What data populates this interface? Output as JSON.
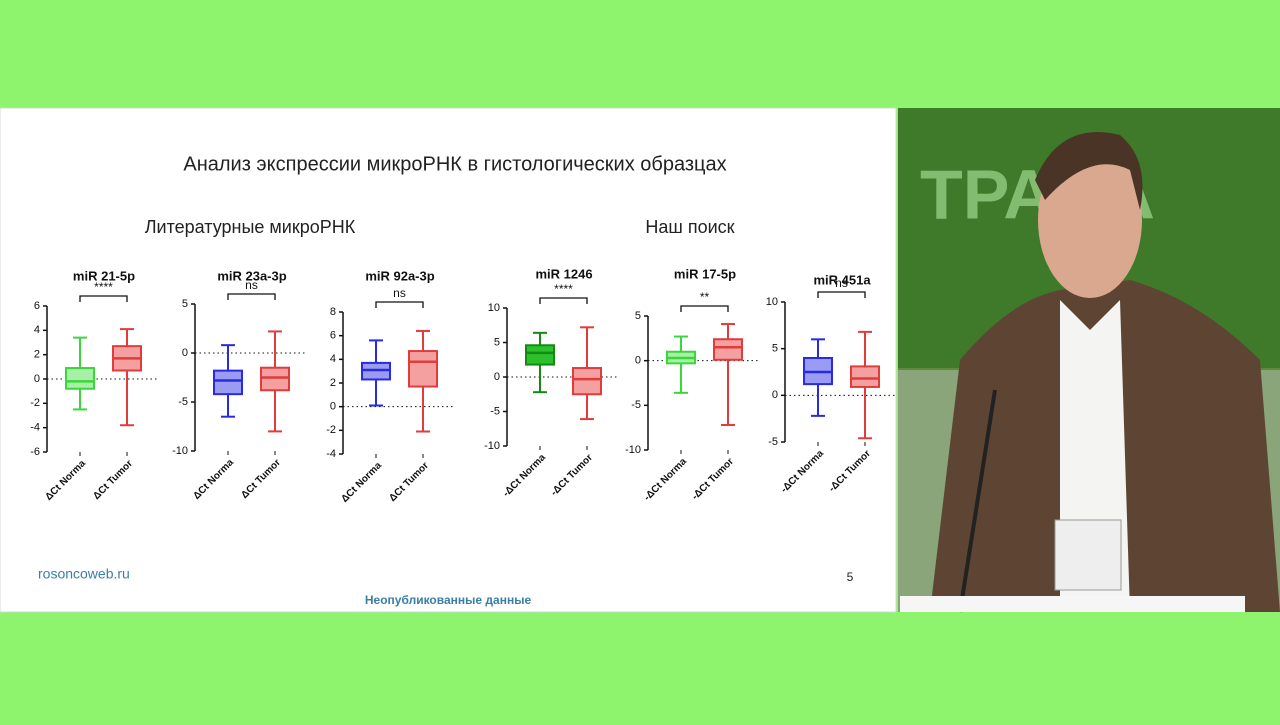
{
  "slide": {
    "title": "Анализ экспрессии микроРНК в гистологических образцах",
    "left_heading": "Литературные микроРНК",
    "right_heading": "Наш поиск",
    "website": "rosoncoweb.ru",
    "page_number": "5",
    "footer": "Неопубликованные данные"
  },
  "chart_data": [
    {
      "type": "box",
      "title": "miR 21-5p",
      "categories": [
        "ΔCt Norma",
        "ΔCt Tumor"
      ],
      "colors": [
        "#3ad63a",
        "#e03c3c"
      ],
      "fills": [
        "#a8f0a8",
        "#f4a0a0"
      ],
      "min": [
        -2.5,
        -3.8
      ],
      "q1": [
        -0.8,
        0.7
      ],
      "median": [
        -0.2,
        1.7
      ],
      "q3": [
        0.9,
        2.7
      ],
      "max": [
        3.4,
        4.1
      ],
      "ylim": [
        -6,
        6
      ],
      "yticks": [
        -6,
        -4,
        -2,
        0,
        2,
        4,
        6
      ],
      "annotation": "****"
    },
    {
      "type": "box",
      "title": "miR 23a-3p",
      "categories": [
        "ΔCt Norma",
        "ΔCt Tumor"
      ],
      "colors": [
        "#2a2ae0",
        "#e03c3c"
      ],
      "fills": [
        "#9a9cf4",
        "#f4a0a0"
      ],
      "min": [
        -6.5,
        -8
      ],
      "q1": [
        -4.2,
        -3.8
      ],
      "median": [
        -2.8,
        -2.5
      ],
      "q3": [
        -1.8,
        -1.5
      ],
      "max": [
        0.8,
        2.2
      ],
      "ylim": [
        -10,
        5
      ],
      "yticks": [
        -10,
        -5,
        0,
        5
      ],
      "annotation": "ns"
    },
    {
      "type": "box",
      "title": "miR 92a-3p",
      "categories": [
        "ΔCt Norma",
        "ΔCt Tumor"
      ],
      "colors": [
        "#2a2ae0",
        "#e03c3c"
      ],
      "fills": [
        "#9a9cf4",
        "#f4a0a0"
      ],
      "min": [
        0.1,
        -2.1
      ],
      "q1": [
        2.3,
        1.7
      ],
      "median": [
        3.1,
        3.8
      ],
      "q3": [
        3.7,
        4.7
      ],
      "max": [
        5.6,
        6.4
      ],
      "ylim": [
        -4,
        8
      ],
      "yticks": [
        -4,
        -2,
        0,
        2,
        4,
        6,
        8
      ],
      "annotation": "ns"
    },
    {
      "type": "box",
      "title": "miR 1246",
      "categories": [
        "-ΔCt Norma",
        "-ΔCt Tumor"
      ],
      "colors": [
        "#138a13",
        "#e03c3c"
      ],
      "fills": [
        "#2cc02c",
        "#f4a0a0"
      ],
      "min": [
        -2.2,
        -6.1
      ],
      "q1": [
        1.8,
        -2.5
      ],
      "median": [
        3.5,
        -0.3
      ],
      "q3": [
        4.6,
        1.3
      ],
      "max": [
        6.4,
        7.2
      ],
      "ylim": [
        -10,
        10
      ],
      "yticks": [
        -10,
        -5,
        0,
        5,
        10
      ],
      "annotation": "****"
    },
    {
      "type": "box",
      "title": "miR 17-5p",
      "categories": [
        "-ΔCt Norma",
        "-ΔCt Tumor"
      ],
      "colors": [
        "#3ad63a",
        "#e03c3c"
      ],
      "fills": [
        "#a8f0a8",
        "#f4a0a0"
      ],
      "min": [
        -3.6,
        -7.2
      ],
      "q1": [
        -0.3,
        0.1
      ],
      "median": [
        0.3,
        1.5
      ],
      "q3": [
        1,
        2.4
      ],
      "max": [
        2.7,
        4.1
      ],
      "ylim": [
        -10,
        5
      ],
      "yticks": [
        -10,
        -5,
        0,
        5
      ],
      "annotation": "**"
    },
    {
      "type": "box",
      "title": "miR 451a",
      "categories": [
        "-ΔCt Norma",
        "-ΔCt Tumor"
      ],
      "colors": [
        "#2a2ae0",
        "#e03c3c"
      ],
      "fills": [
        "#9a9cf4",
        "#f4a0a0"
      ],
      "min": [
        -2.2,
        -4.6
      ],
      "q1": [
        1.2,
        0.9
      ],
      "median": [
        2.5,
        1.8
      ],
      "q3": [
        4,
        3.1
      ],
      "max": [
        6,
        6.8
      ],
      "ylim": [
        -5,
        10
      ],
      "yticks": [
        -5,
        0,
        5,
        10
      ],
      "annotation": "ns"
    }
  ]
}
